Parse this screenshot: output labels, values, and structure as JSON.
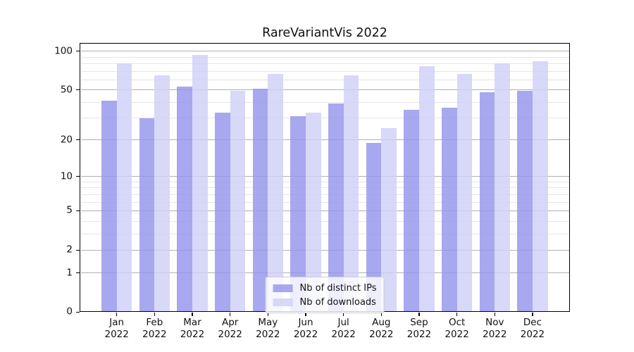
{
  "chart_data": {
    "type": "bar",
    "title": "RareVariantVis 2022",
    "categories": [
      {
        "month": "Jan",
        "year": "2022"
      },
      {
        "month": "Feb",
        "year": "2022"
      },
      {
        "month": "Mar",
        "year": "2022"
      },
      {
        "month": "Apr",
        "year": "2022"
      },
      {
        "month": "May",
        "year": "2022"
      },
      {
        "month": "Jun",
        "year": "2022"
      },
      {
        "month": "Jul",
        "year": "2022"
      },
      {
        "month": "Aug",
        "year": "2022"
      },
      {
        "month": "Sep",
        "year": "2022"
      },
      {
        "month": "Oct",
        "year": "2022"
      },
      {
        "month": "Nov",
        "year": "2022"
      },
      {
        "month": "Dec",
        "year": "2022"
      }
    ],
    "series": [
      {
        "name": "Nb of distinct IPs",
        "color": "#9595ed",
        "values": [
          41,
          30,
          53,
          33,
          51,
          31,
          39,
          19,
          35,
          36,
          48,
          49
        ]
      },
      {
        "name": "Nb of downloads",
        "color": "#d0d0f7",
        "values": [
          81,
          65,
          94,
          49,
          67,
          33,
          65,
          25,
          77,
          67,
          81,
          84
        ]
      }
    ],
    "bar_opacity": 0.82,
    "yscale": "log1p",
    "ylim": [
      0,
      116
    ],
    "yticks": [
      100,
      50,
      20,
      10,
      5,
      2,
      1,
      0
    ],
    "minor_yticks": [
      3,
      4,
      6,
      7,
      8,
      9,
      30,
      40,
      60,
      70,
      80,
      90
    ],
    "xlabel": "",
    "ylabel": "",
    "grid": true,
    "legend_position": "lower center",
    "colors": {
      "grid_major": "#b0b0b0",
      "grid_minor": "#e6e6e6",
      "axis": "#000000",
      "text": "#111111",
      "legend_bg": "rgba(255,255,255,0.8)",
      "legend_border": "#cccccc"
    }
  }
}
